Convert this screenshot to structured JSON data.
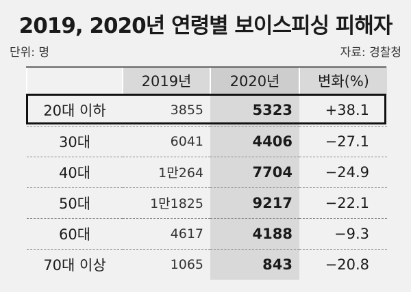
{
  "title": "2019, 2020년 연령별 보이스피싱 피해자",
  "unit_label": "단위: 명",
  "source_label": "자료: 경찰청",
  "chart_data": {
    "type": "table",
    "columns": [
      "",
      "2019년",
      "2020년",
      "변화(%)"
    ],
    "rows": [
      {
        "age": "20대 이하",
        "y2019": "3855",
        "y2020": "5323",
        "change": "+38.1"
      },
      {
        "age": "30대",
        "y2019": "6041",
        "y2020": "4406",
        "change": "−27.1"
      },
      {
        "age": "40대",
        "y2019": "1만264",
        "y2020": "7704",
        "change": "−24.9"
      },
      {
        "age": "50대",
        "y2019": "1만1825",
        "y2020": "9217",
        "change": "−22.1"
      },
      {
        "age": "60대",
        "y2019": "4617",
        "y2020": "4188",
        "change": "−9.3"
      },
      {
        "age": "70대 이상",
        "y2019": "1065",
        "y2020": "843",
        "change": "−20.8"
      }
    ]
  }
}
